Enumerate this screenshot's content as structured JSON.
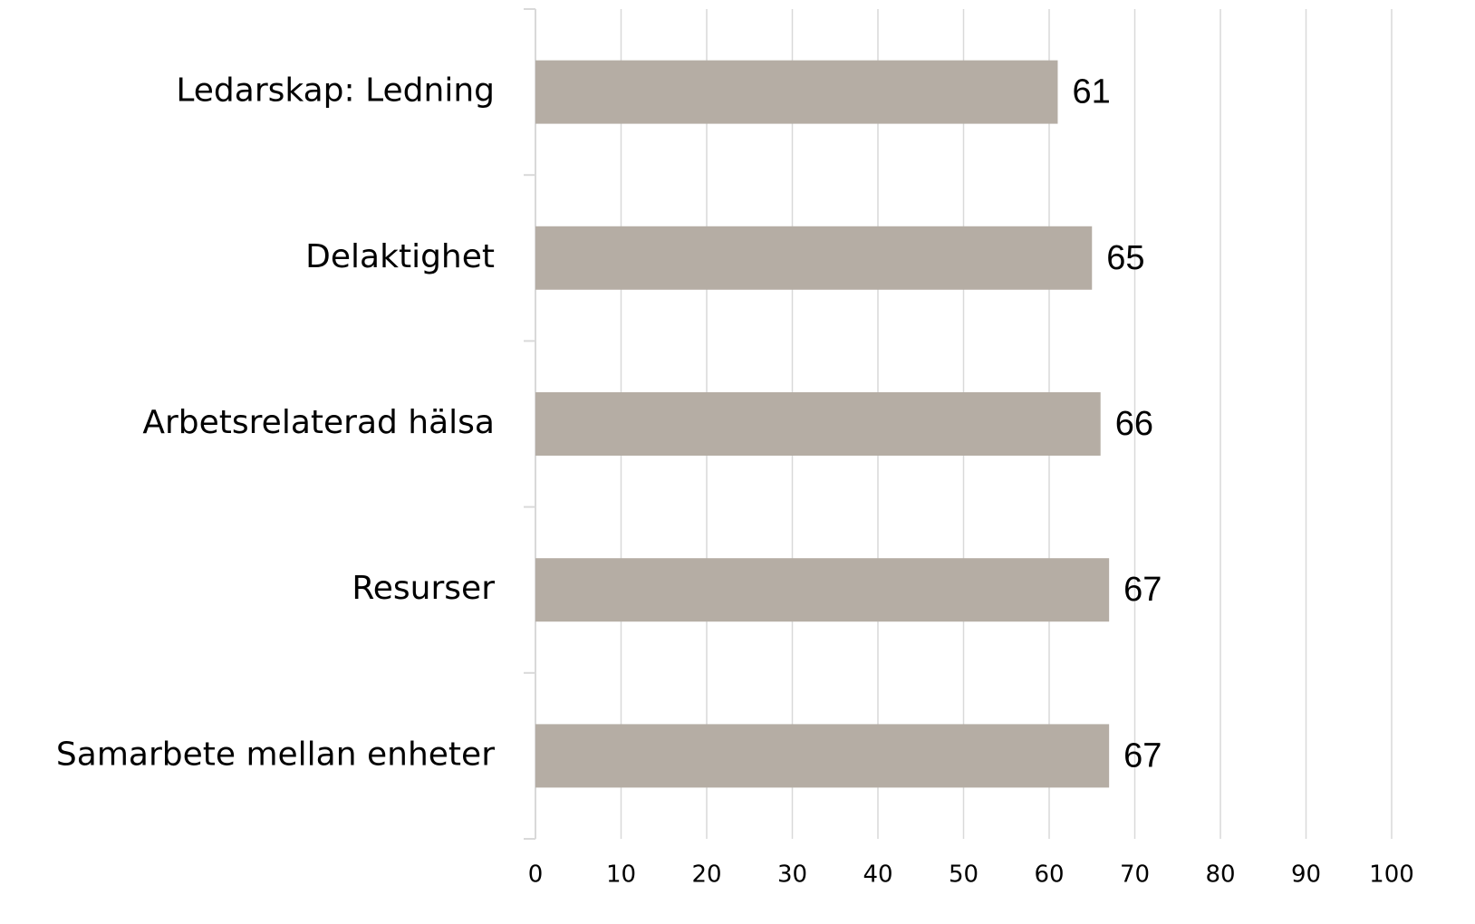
{
  "chart_data": {
    "type": "bar",
    "orientation": "horizontal",
    "categories": [
      "Ledarskap: Ledning",
      "Delaktighet",
      "Arbetsrelaterad hälsa",
      "Resurser",
      "Samarbete mellan enheter"
    ],
    "values": [
      61,
      65,
      66,
      67,
      67
    ],
    "color": "#b5ada4",
    "xlim": [
      0,
      100
    ],
    "xticks": [
      0,
      10,
      20,
      30,
      40,
      50,
      60,
      70,
      80,
      90,
      100
    ],
    "grid": true
  }
}
